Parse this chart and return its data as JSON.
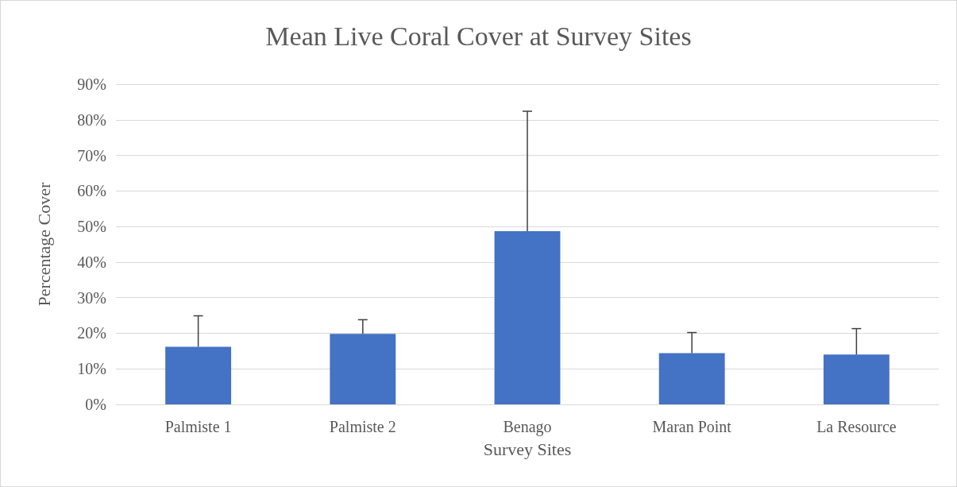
{
  "chart_data": {
    "type": "bar",
    "title": "Mean Live Coral Cover at Survey Sites",
    "xlabel": "Survey Sites",
    "ylabel": "Percentage Cover",
    "categories": [
      "Palmiste 1",
      "Palmiste 2",
      "Benago",
      "Maran Point",
      "La Resource"
    ],
    "values": [
      16.2,
      19.8,
      48.7,
      14.4,
      14.0
    ],
    "errors": [
      [
        16.2,
        24.9
      ],
      [
        19.8,
        23.8
      ],
      [
        48.7,
        82.4
      ],
      [
        14.4,
        20.2
      ],
      [
        14.0,
        21.3
      ]
    ],
    "color": "#4472c4",
    "ylim": [
      0,
      90
    ],
    "yticks": [
      {
        "value": 0,
        "label": "0%"
      },
      {
        "value": 10,
        "label": "10%"
      },
      {
        "value": 20,
        "label": "20%"
      },
      {
        "value": 30,
        "label": "30%"
      },
      {
        "value": 40,
        "label": "40%"
      },
      {
        "value": 50,
        "label": "50%"
      },
      {
        "value": 60,
        "label": "60%"
      },
      {
        "value": 70,
        "label": "70%"
      },
      {
        "value": 80,
        "label": "80%"
      },
      {
        "value": 90,
        "label": "90%"
      }
    ],
    "grid": "y"
  }
}
